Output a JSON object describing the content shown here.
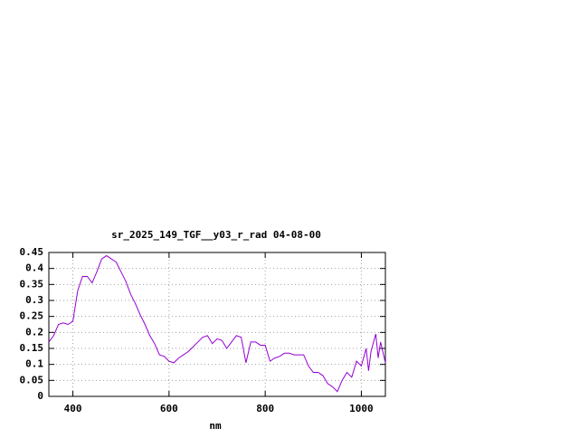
{
  "chart_data": {
    "type": "line",
    "title": "sr_2025_149_TGF__y03_r_rad 04-08-00",
    "x_label": "nm",
    "x": [
      350,
      360,
      370,
      380,
      390,
      400,
      410,
      420,
      430,
      440,
      450,
      460,
      470,
      480,
      490,
      500,
      510,
      520,
      530,
      540,
      550,
      560,
      570,
      580,
      590,
      600,
      610,
      620,
      630,
      640,
      650,
      660,
      670,
      680,
      690,
      700,
      710,
      720,
      730,
      740,
      750,
      760,
      770,
      780,
      790,
      800,
      810,
      820,
      830,
      840,
      850,
      860,
      870,
      880,
      890,
      900,
      910,
      920,
      930,
      940,
      950,
      960,
      970,
      980,
      990,
      1000,
      1010,
      1015,
      1020,
      1030,
      1035,
      1040,
      1050
    ],
    "series": [
      {
        "color": "#9400d3",
        "values": [
          0.17,
          0.19,
          0.225,
          0.23,
          0.225,
          0.235,
          0.33,
          0.375,
          0.375,
          0.355,
          0.39,
          0.43,
          0.44,
          0.43,
          0.42,
          0.39,
          0.36,
          0.32,
          0.29,
          0.255,
          0.225,
          0.19,
          0.165,
          0.13,
          0.125,
          0.11,
          0.105,
          0.12,
          0.13,
          0.14,
          0.155,
          0.17,
          0.185,
          0.19,
          0.165,
          0.18,
          0.175,
          0.15,
          0.17,
          0.19,
          0.185,
          0.105,
          0.17,
          0.17,
          0.16,
          0.16,
          0.11,
          0.12,
          0.125,
          0.135,
          0.135,
          0.13,
          0.13,
          0.13,
          0.095,
          0.075,
          0.075,
          0.065,
          0.04,
          0.03,
          0.015,
          0.05,
          0.075,
          0.06,
          0.11,
          0.095,
          0.15,
          0.08,
          0.14,
          0.195,
          0.12,
          0.17,
          0.105
        ]
      }
    ],
    "xlim": [
      350,
      1050
    ],
    "ylim": [
      0,
      0.45
    ],
    "xticks": [
      400,
      600,
      800,
      1000
    ],
    "yticks": [
      0,
      0.05,
      0.1,
      0.15,
      0.2,
      0.25,
      0.3,
      0.35,
      0.4,
      0.45
    ],
    "grid": true
  }
}
